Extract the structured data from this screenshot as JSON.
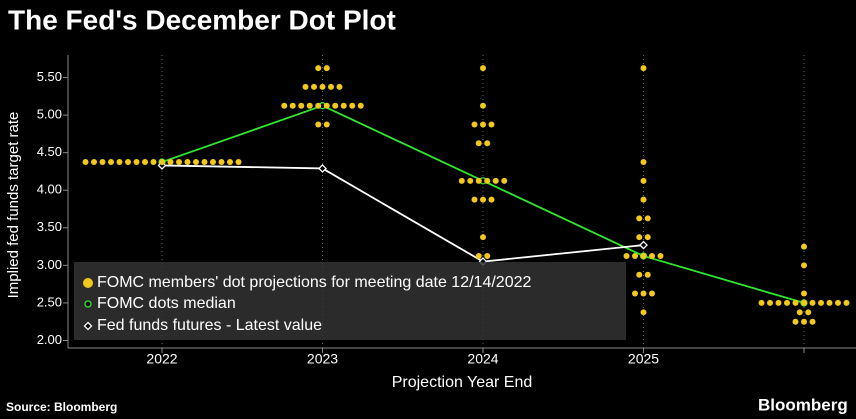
{
  "chart_data": {
    "type": "dotplot",
    "title": "The Fed's December Dot Plot",
    "x_label": "Projection Year End",
    "y_label": "Implied fed funds target rate",
    "source": "Source: Bloomberg",
    "brand": "Bloomberg",
    "categories": [
      "2022",
      "2023",
      "2024",
      "2025",
      null
    ],
    "ylim": [
      1.9,
      5.8
    ],
    "yticks": [
      {
        "value": 2.0,
        "label": "2.00"
      },
      {
        "value": 2.5,
        "label": "2.50"
      },
      {
        "value": 3.0,
        "label": "3.00"
      },
      {
        "value": 3.5,
        "label": "3.50"
      },
      {
        "value": 4.0,
        "label": "4.00"
      },
      {
        "value": 4.5,
        "label": "4.50"
      },
      {
        "value": 5.0,
        "label": "5.00"
      },
      {
        "value": 5.5,
        "label": "5.50"
      }
    ],
    "series": [
      {
        "name": "FOMC members' dot projections for meeting date 12/14/2022",
        "color": "#f2c81c",
        "dots": [
          {
            "rates": [
              4.375
            ],
            "counts": [
              19
            ]
          },
          {
            "rates": [
              5.625,
              5.375,
              5.125,
              4.875
            ],
            "counts": [
              2,
              5,
              10,
              2
            ]
          },
          {
            "rates": [
              5.625,
              5.125,
              4.875,
              4.625,
              4.125,
              3.875,
              3.375,
              3.125
            ],
            "counts": [
              1,
              1,
              3,
              2,
              6,
              3,
              1,
              2
            ]
          },
          {
            "rates": [
              5.625,
              4.375,
              4.125,
              3.875,
              3.625,
              3.375,
              3.125,
              2.875,
              2.625,
              2.375
            ],
            "counts": [
              1,
              1,
              1,
              1,
              2,
              2,
              5,
              2,
              3,
              1
            ]
          },
          {
            "rates": [
              3.25,
              3.0,
              2.625,
              2.5,
              2.375,
              2.25
            ],
            "counts": [
              1,
              1,
              1,
              11,
              2,
              3
            ]
          }
        ]
      },
      {
        "name": "FOMC dots median",
        "color": "#2ee82e",
        "values": [
          4.375,
          5.125,
          4.125,
          3.125,
          2.5
        ]
      },
      {
        "name": "Fed funds futures - Latest value",
        "color": "#ffffff",
        "values": [
          4.33,
          4.29,
          3.05,
          3.27,
          null
        ]
      }
    ]
  }
}
